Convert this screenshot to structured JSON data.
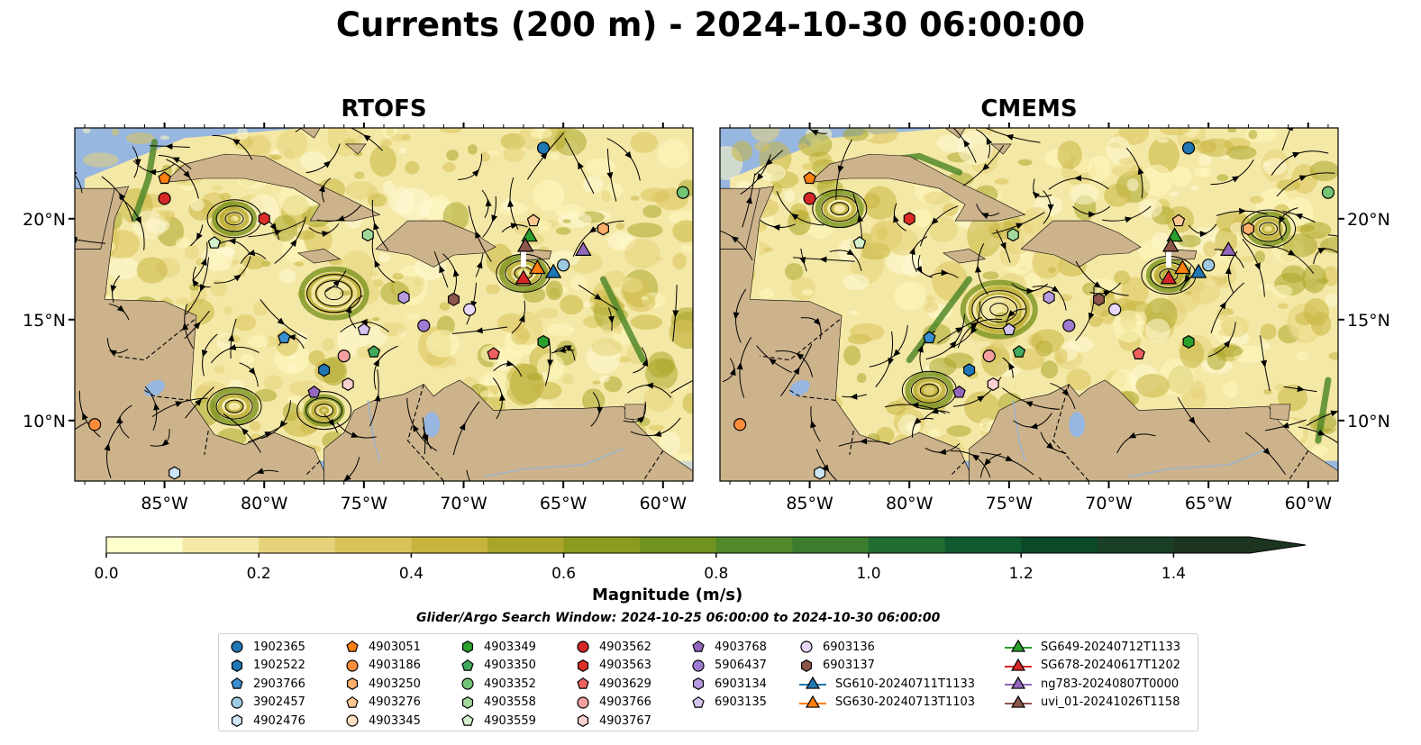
{
  "title": "Currents (200 m) - 2024-10-30 06:00:00",
  "panels": [
    {
      "name": "RTOFS",
      "x_ticks": [
        "85°W",
        "80°W",
        "75°W",
        "70°W",
        "65°W",
        "60°W"
      ],
      "y_ticks": [
        "20°N",
        "15°N",
        "10°N"
      ]
    },
    {
      "name": "CMEMS",
      "x_ticks": [
        "85°W",
        "80°W",
        "75°W",
        "70°W",
        "65°W",
        "60°W"
      ],
      "y_ticks": [
        "20°N",
        "15°N",
        "10°N"
      ]
    }
  ],
  "map_extent": {
    "lon": [
      -89.5,
      -58.5
    ],
    "lat": [
      7.0,
      24.5
    ]
  },
  "colorbar": {
    "label": "Magnitude (m/s)",
    "ticks": [
      "0.0",
      "0.2",
      "0.4",
      "0.6",
      "0.8",
      "1.0",
      "1.2",
      "1.4"
    ],
    "range": [
      0.0,
      1.5
    ],
    "extend": "max",
    "colors": [
      "#ffffcc",
      "#f4e8a6",
      "#e6d27a",
      "#d8c25a",
      "#c6b43f",
      "#a9a52a",
      "#8c9a1e",
      "#6f9221",
      "#52882a",
      "#3b7d2d",
      "#1f6d30",
      "#0f5b2f",
      "#0b4a29",
      "#1a3f26",
      "#1d3520"
    ]
  },
  "search_window": "Glider/Argo Search Window: 2024-10-25 06:00:00 to 2024-10-30 06:00:00",
  "colors": {
    "ocean": "#97b6e0",
    "land": "#cdb38b"
  },
  "legend": [
    {
      "label": "1902365",
      "shape": "circle",
      "color": "#1f77b4"
    },
    {
      "label": "1902522",
      "shape": "hexagon",
      "color": "#1f77b4"
    },
    {
      "label": "2903766",
      "shape": "pentagon",
      "color": "#3a8fd0"
    },
    {
      "label": "3902457",
      "shape": "circle",
      "color": "#9ecae1"
    },
    {
      "label": "4902476",
      "shape": "hexagon",
      "color": "#cce4f4"
    },
    {
      "label": "4903051",
      "shape": "pentagon",
      "color": "#ff7f0e"
    },
    {
      "label": "4903186",
      "shape": "circle",
      "color": "#fd8d3c"
    },
    {
      "label": "4903250",
      "shape": "hexagon",
      "color": "#fdae6b"
    },
    {
      "label": "4903276",
      "shape": "pentagon",
      "color": "#fdc890"
    },
    {
      "label": "4903345",
      "shape": "circle",
      "color": "#fee0c0"
    },
    {
      "label": "4903349",
      "shape": "hexagon",
      "color": "#2ca02c"
    },
    {
      "label": "4903350",
      "shape": "pentagon",
      "color": "#41ab5d"
    },
    {
      "label": "4903352",
      "shape": "circle",
      "color": "#74c476"
    },
    {
      "label": "4903558",
      "shape": "hexagon",
      "color": "#a1d99b"
    },
    {
      "label": "4903559",
      "shape": "pentagon",
      "color": "#d4f0cc"
    },
    {
      "label": "4903562",
      "shape": "circle",
      "color": "#d62728"
    },
    {
      "label": "4903563",
      "shape": "hexagon",
      "color": "#de2d26"
    },
    {
      "label": "4903629",
      "shape": "pentagon",
      "color": "#f06060"
    },
    {
      "label": "4903766",
      "shape": "circle",
      "color": "#f4a0a0"
    },
    {
      "label": "4903767",
      "shape": "hexagon",
      "color": "#fcd0d0"
    },
    {
      "label": "4903768",
      "shape": "pentagon",
      "color": "#9467bd"
    },
    {
      "label": "5906437",
      "shape": "circle",
      "color": "#9e7ad0"
    },
    {
      "label": "6903134",
      "shape": "hexagon",
      "color": "#b89ae0"
    },
    {
      "label": "6903135",
      "shape": "pentagon",
      "color": "#d4c4f0"
    },
    {
      "label": "6903136",
      "shape": "circle",
      "color": "#e6d8f6"
    },
    {
      "label": "6903137",
      "shape": "hexagon",
      "color": "#8c564b"
    },
    {
      "label": "SG610-20240711T1133",
      "shape": "triangle",
      "color": "#1f77b4"
    },
    {
      "label": "SG630-20240713T1103",
      "shape": "triangle",
      "color": "#ff7f0e"
    },
    {
      "label": "SG649-20240712T1133",
      "shape": "triangle",
      "color": "#2ca02c"
    },
    {
      "label": "SG678-20240617T1202",
      "shape": "triangle",
      "color": "#d62728"
    },
    {
      "label": "ng783-20240807T0000",
      "shape": "triangle",
      "color": "#9467bd"
    },
    {
      "label": "uvi_01-20241026T1158",
      "shape": "triangle",
      "color": "#8c564b"
    }
  ],
  "markers_rtofs": [
    {
      "id": "1902365",
      "lon": -66.0,
      "lat": 23.5
    },
    {
      "id": "4903051",
      "lon": -85.0,
      "lat": 22.0
    },
    {
      "id": "4903562",
      "lon": -85.0,
      "lat": 21.0
    },
    {
      "id": "4903563",
      "lon": -80.0,
      "lat": 20.0
    },
    {
      "id": "4903559",
      "lon": -82.5,
      "lat": 18.8
    },
    {
      "id": "4903558",
      "lon": -74.8,
      "lat": 19.2
    },
    {
      "id": "4903276",
      "lon": -66.5,
      "lat": 19.9
    },
    {
      "id": "4903250",
      "lon": -63.0,
      "lat": 19.5
    },
    {
      "id": "4903352",
      "lon": -59.0,
      "lat": 21.3
    },
    {
      "id": "3902457",
      "lon": -65.0,
      "lat": 17.7
    },
    {
      "id": "6903134",
      "lon": -73.0,
      "lat": 16.1
    },
    {
      "id": "6903137",
      "lon": -70.5,
      "lat": 16.0
    },
    {
      "id": "5906437",
      "lon": -72.0,
      "lat": 14.7
    },
    {
      "id": "6903136",
      "lon": -69.7,
      "lat": 15.5
    },
    {
      "id": "6903135",
      "lon": -75.0,
      "lat": 14.5
    },
    {
      "id": "2903766",
      "lon": -79.0,
      "lat": 14.1
    },
    {
      "id": "4903350",
      "lon": -74.5,
      "lat": 13.4
    },
    {
      "id": "4903766",
      "lon": -76.0,
      "lat": 13.2
    },
    {
      "id": "1902522",
      "lon": -77.0,
      "lat": 12.5
    },
    {
      "id": "4903767",
      "lon": -75.8,
      "lat": 11.8
    },
    {
      "id": "4903768",
      "lon": -77.5,
      "lat": 11.4
    },
    {
      "id": "4903629",
      "lon": -68.5,
      "lat": 13.3
    },
    {
      "id": "4903349",
      "lon": -66.0,
      "lat": 13.9
    },
    {
      "id": "4903186",
      "lon": -88.5,
      "lat": 9.8
    },
    {
      "id": "4902476",
      "lon": -84.5,
      "lat": 7.4
    }
  ],
  "gliders_rtofs": [
    {
      "id": "SG649-20240712T1133",
      "lon": -66.7,
      "lat": 19.1
    },
    {
      "id": "uvi_01-20241026T1158",
      "lon": -66.9,
      "lat": 18.6
    },
    {
      "id": "ng783-20240807T0000",
      "lon": -64.0,
      "lat": 18.4
    },
    {
      "id": "SG630-20240713T1103",
      "lon": -66.3,
      "lat": 17.5
    },
    {
      "id": "SG610-20240711T1133",
      "lon": -65.5,
      "lat": 17.3
    },
    {
      "id": "SG678-20240617T1202",
      "lon": -67.0,
      "lat": 17.0
    }
  ]
}
